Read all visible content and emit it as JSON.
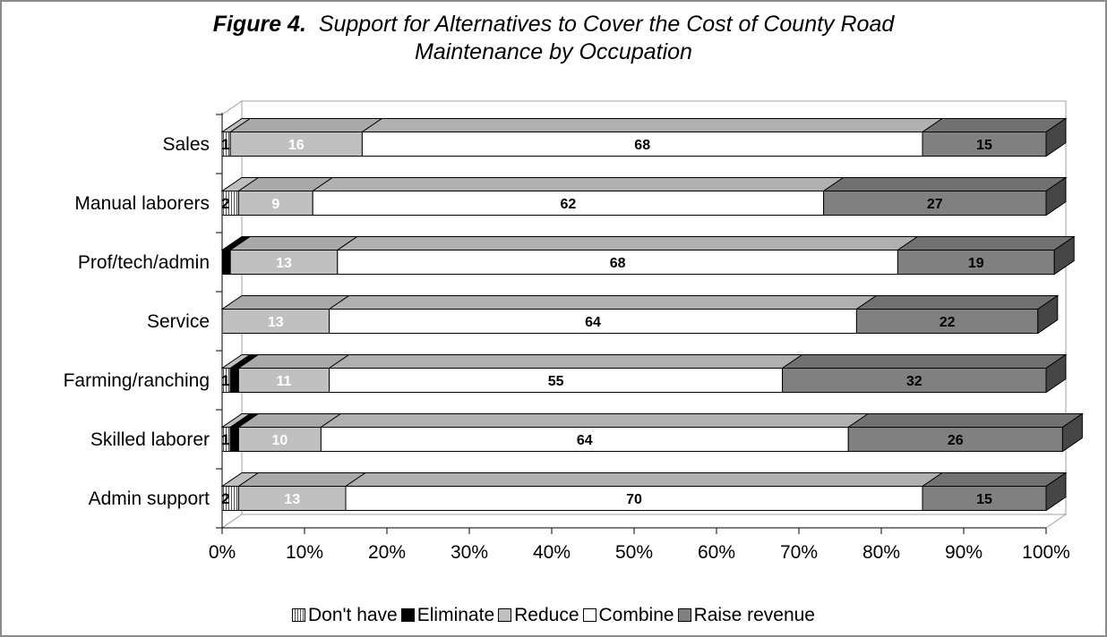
{
  "chart_data": {
    "type": "bar",
    "orientation": "horizontal",
    "stacked": true,
    "title_lead": "Figure 4.",
    "title_line1": "Support for Alternatives to Cover the Cost of County Road",
    "title_line2": "Maintenance by Occupation",
    "categories": [
      "Sales",
      "Manual laborers",
      "Prof/tech/admin",
      "Service",
      "Farming/ranching",
      "Skilled laborer",
      "Admin support"
    ],
    "series": [
      {
        "name": "Don't have",
        "color": "#d9d9d9",
        "values": [
          1,
          2,
          0,
          0,
          1,
          1,
          2
        ],
        "labels": [
          "1",
          "2",
          "",
          "",
          "1",
          "1",
          "2"
        ]
      },
      {
        "name": "Eliminate",
        "color": "#000000",
        "values": [
          0,
          0,
          1,
          0,
          1,
          1,
          0
        ],
        "labels": [
          "",
          "",
          "1",
          "",
          "1",
          "1",
          ""
        ]
      },
      {
        "name": "Reduce",
        "color": "#c0c0c0",
        "values": [
          16,
          9,
          13,
          13,
          11,
          10,
          13
        ],
        "labels": [
          "16",
          "9",
          "13",
          "13",
          "11",
          "10",
          "13"
        ]
      },
      {
        "name": "Combine",
        "color": "#ffffff",
        "values": [
          68,
          62,
          68,
          64,
          55,
          64,
          70
        ],
        "labels": [
          "68",
          "62",
          "68",
          "64",
          "55",
          "64",
          "70"
        ]
      },
      {
        "name": "Raise revenue",
        "color": "#808080",
        "values": [
          15,
          27,
          19,
          22,
          32,
          26,
          15
        ],
        "labels": [
          "15",
          "27",
          "19",
          "22",
          "32",
          "26",
          "15"
        ]
      }
    ],
    "xlim": [
      0,
      100
    ],
    "xticks": [
      "0%",
      "10%",
      "20%",
      "30%",
      "40%",
      "50%",
      "60%",
      "70%",
      "80%",
      "90%",
      "100%"
    ],
    "legend_position": "bottom",
    "grid": false
  }
}
